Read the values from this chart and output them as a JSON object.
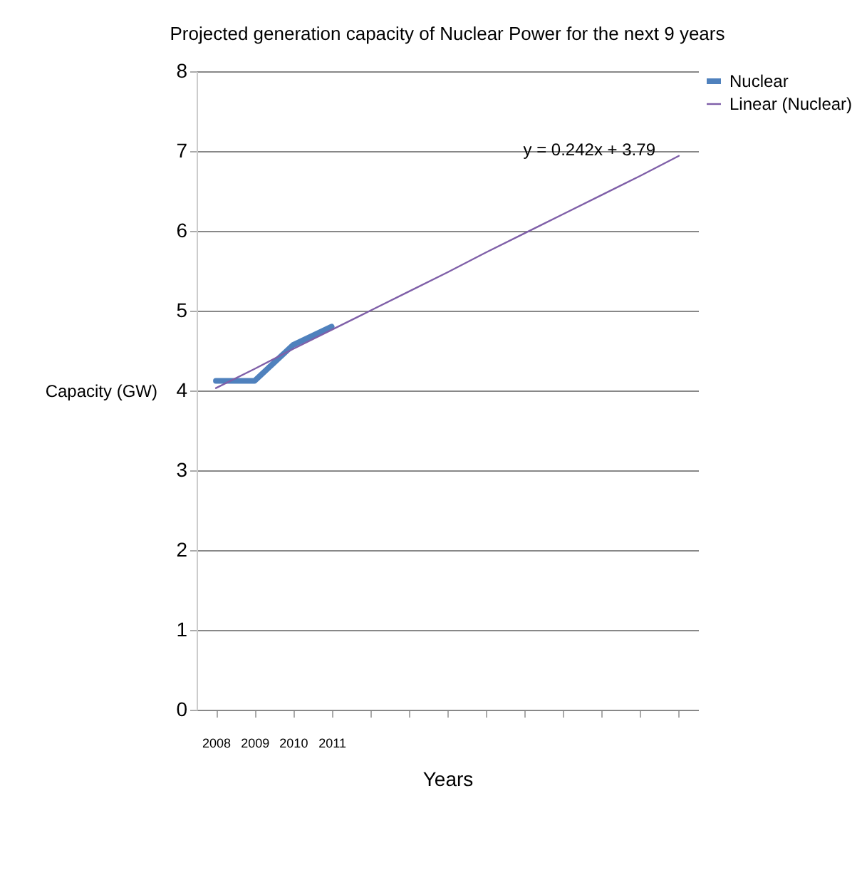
{
  "chart_data": {
    "type": "line",
    "title": "Projected generation capacity of Nuclear Power for the next 9 years",
    "xlabel": "Years",
    "ylabel": "Capacity (GW)",
    "categories": [
      "2008",
      "2009",
      "2010",
      "2011",
      null,
      null,
      null,
      null,
      null,
      null,
      null,
      null,
      null
    ],
    "series": [
      {
        "name": "Nuclear",
        "color": "#4f81bd",
        "values": [
          4.12,
          4.12,
          4.57,
          4.8,
          null,
          null,
          null,
          null,
          null,
          null,
          null,
          null,
          null
        ]
      },
      {
        "name": "Linear (Nuclear)",
        "type": "line",
        "color": "#7f5fa8",
        "values": [
          4.03,
          4.27,
          4.52,
          4.76,
          5.0,
          5.24,
          5.48,
          5.73,
          5.97,
          6.21,
          6.45,
          6.69,
          6.94
        ]
      }
    ],
    "annotations": [
      "y = 0.242x + 3.79"
    ],
    "ylim": [
      0,
      8
    ],
    "yticks": [
      0,
      1,
      2,
      3,
      4,
      5,
      6,
      7,
      8
    ],
    "grid": "y",
    "legend": "right"
  }
}
